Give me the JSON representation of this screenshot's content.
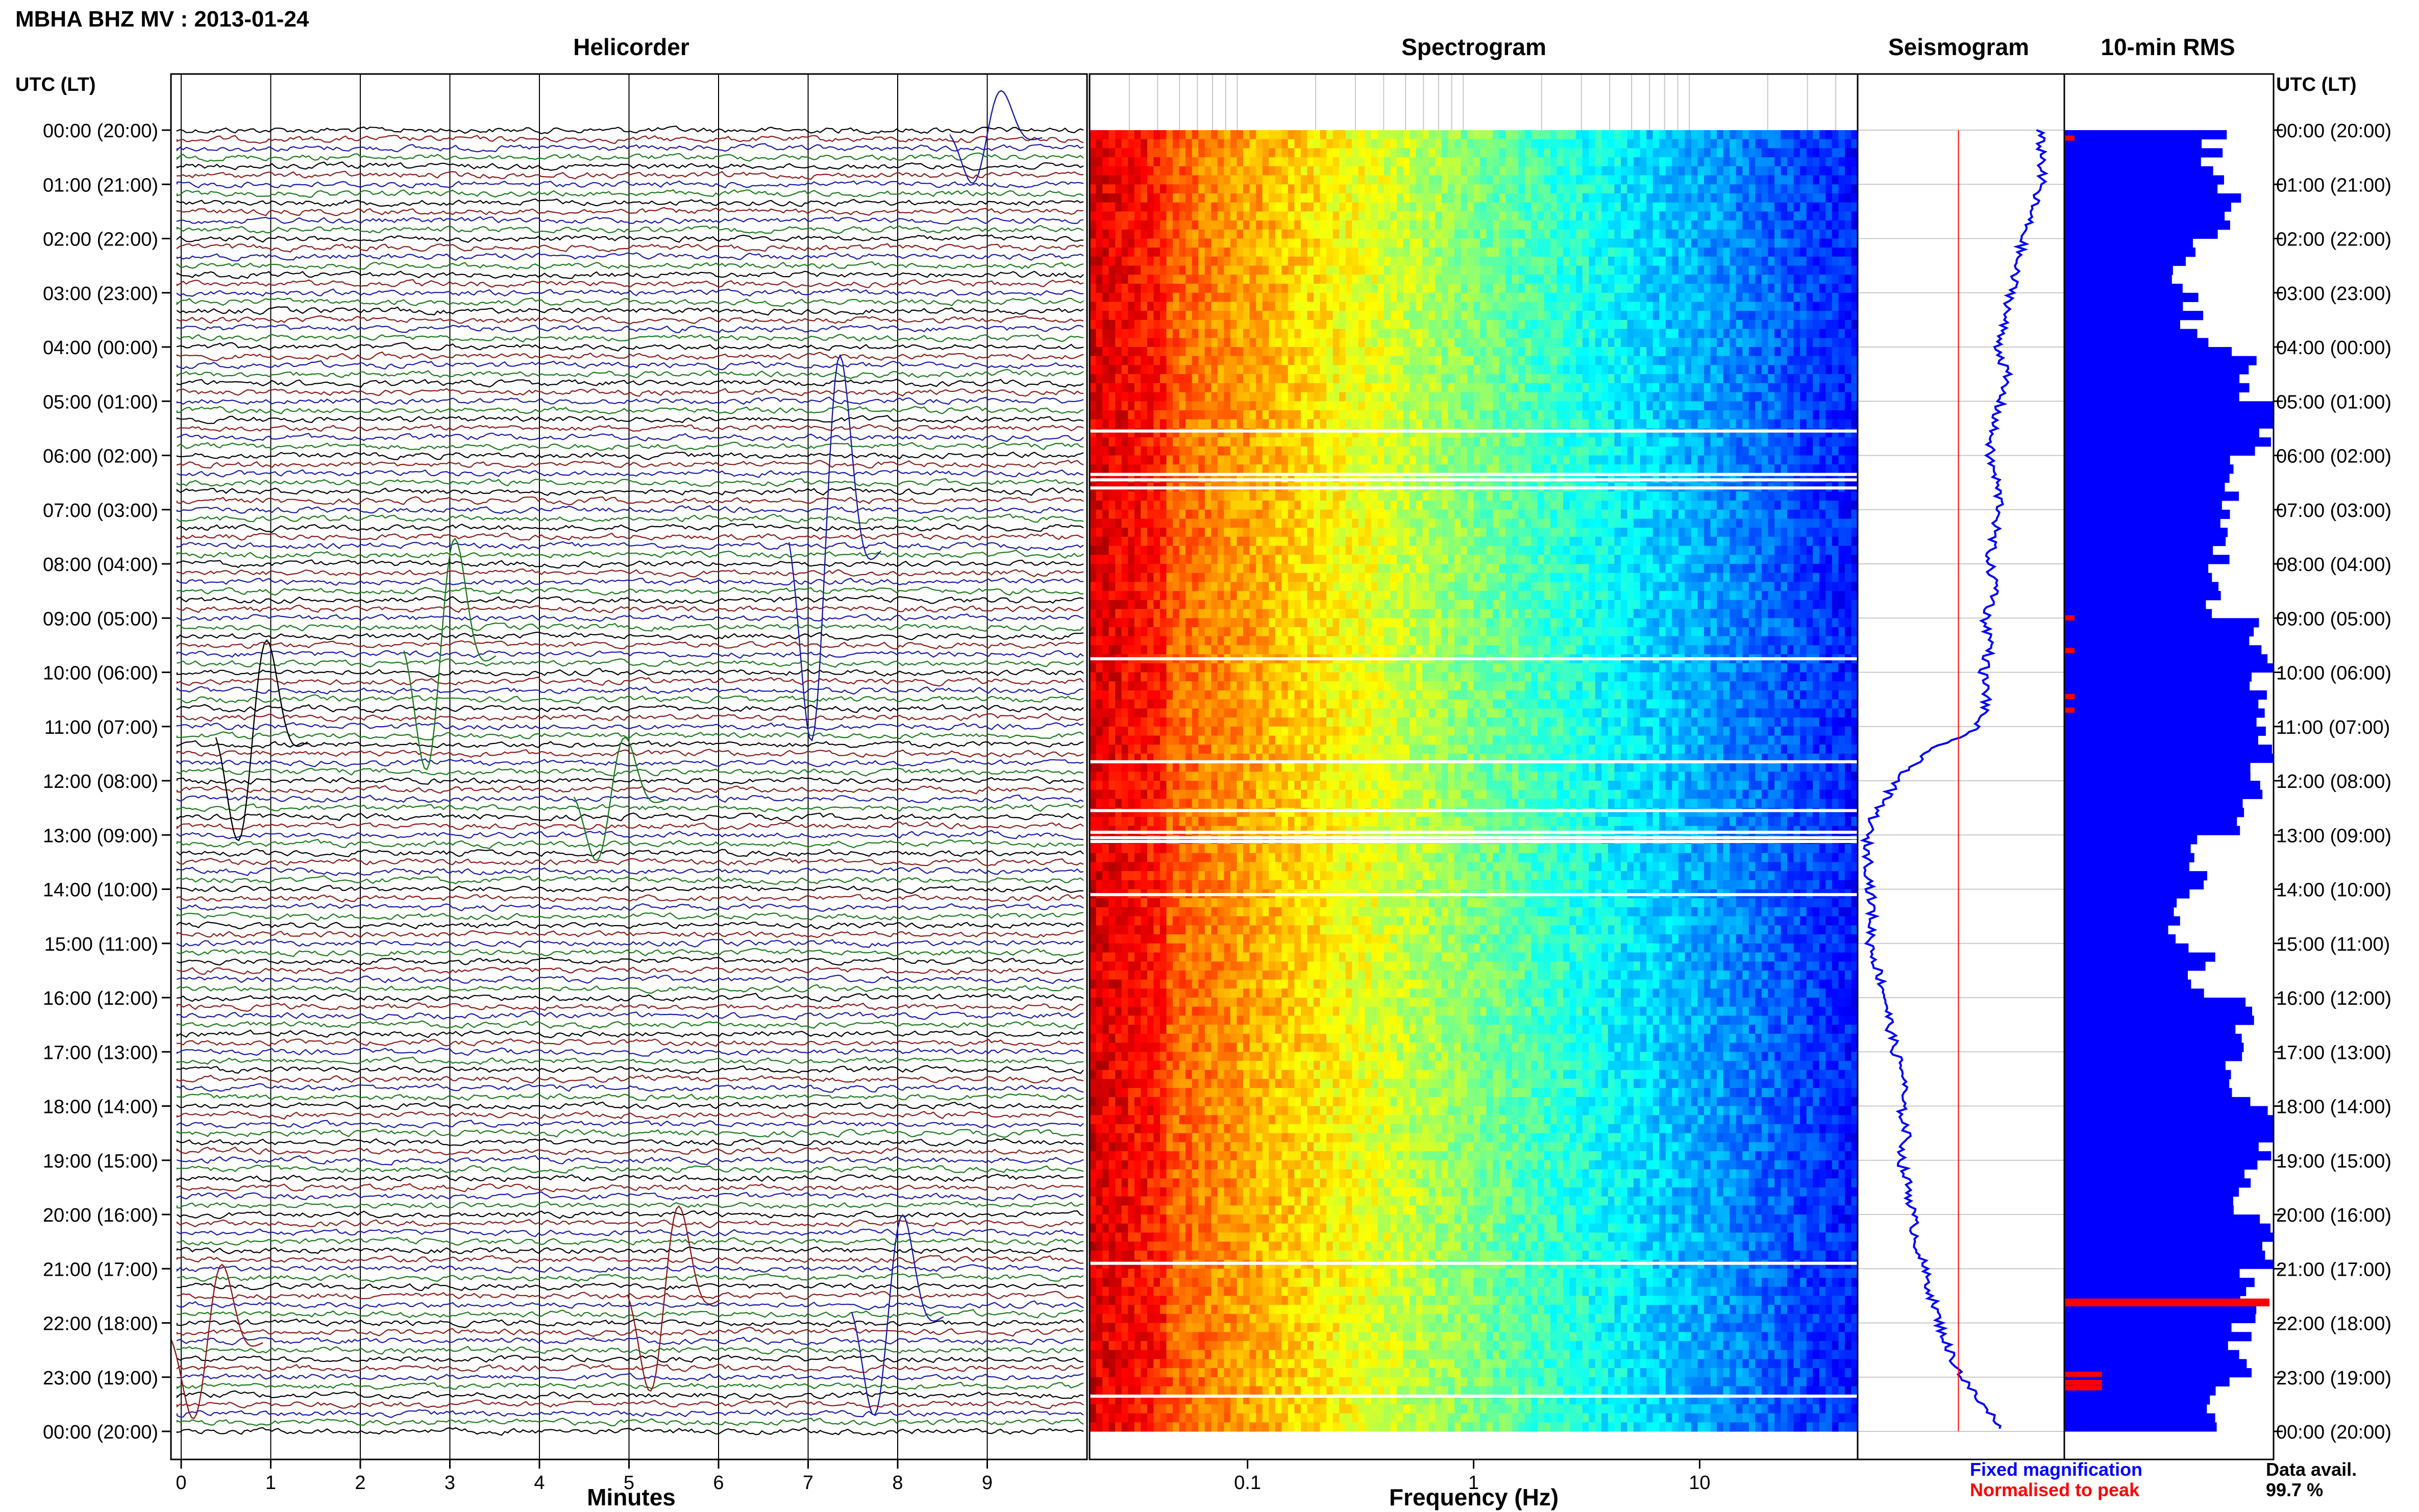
{
  "header": {
    "station": "MBHA BHZ MV : 2013-01-24",
    "utc_label": "UTC (LT)",
    "utc_label_right": "UTC (LT)"
  },
  "panels": {
    "helicorder_title": "Helicorder",
    "spectrogram_title": "Spectrogram",
    "seismogram_title": "Seismogram",
    "rms_title": "10-min RMS"
  },
  "footer": {
    "minutes_label": "Minutes",
    "frequency_label": "Frequency (Hz)",
    "fixed_mag": "Fixed magnification",
    "normalised": "Normalised to peak",
    "data_avail_label": "Data avail.",
    "data_avail_value": "99.7 %"
  },
  "colors": {
    "black": "#000000",
    "red": "#8b1a1a",
    "green": "#1a7a1a",
    "blue": "#1a1aa8",
    "fixed": "#0000ff",
    "normalised": "#ff0000",
    "rms_blue": "#0000ff"
  },
  "chart_data": [
    {
      "type": "line",
      "title": "Helicorder",
      "xlabel": "Minutes",
      "ylabel": "UTC (LT)",
      "x_ticks": [
        "0",
        "1",
        "2",
        "3",
        "4",
        "5",
        "6",
        "7",
        "8",
        "9"
      ],
      "xlim": [
        0,
        10
      ],
      "hour_labels": [
        "00:00 (20:00)",
        "01:00 (21:00)",
        "02:00 (22:00)",
        "03:00 (23:00)",
        "04:00 (00:00)",
        "05:00 (01:00)",
        "06:00 (02:00)",
        "07:00 (03:00)",
        "08:00 (04:00)",
        "09:00 (05:00)",
        "10:00 (06:00)",
        "11:00 (07:00)",
        "12:00 (08:00)",
        "13:00 (09:00)",
        "14:00 (10:00)",
        "15:00 (11:00)",
        "16:00 (12:00)",
        "17:00 (13:00)",
        "18:00 (14:00)",
        "19:00 (15:00)",
        "20:00 (16:00)",
        "21:00 (17:00)",
        "22:00 (18:00)",
        "23:00 (19:00)",
        "00:00 (20:00)"
      ],
      "lines_per_hour": 6,
      "trace_color_cycle": [
        "black",
        "red",
        "blue",
        "green"
      ],
      "grid": true
    },
    {
      "type": "heatmap",
      "title": "Spectrogram",
      "xlabel": "Frequency (Hz)",
      "x_scale": "log",
      "xlim": [
        0.02,
        50
      ],
      "x_ticks": [
        "0.1",
        "1",
        "10"
      ],
      "x_tick_values": [
        0.1,
        1,
        10
      ],
      "colormap": "jet",
      "gap_hours": [
        5.55,
        6.35,
        6.45,
        6.6,
        9.75,
        11.65,
        12.55,
        12.95,
        13.05,
        13.12,
        14.1,
        20.9,
        23.35
      ]
    },
    {
      "type": "line",
      "title": "Seismogram",
      "series": [
        {
          "name": "Fixed magnification",
          "color": "#0000ff",
          "hours": [
            0,
            0.5,
            1,
            1.5,
            2,
            2.5,
            3,
            3.5,
            4,
            4.5,
            5,
            5.5,
            6,
            6.5,
            7,
            7.5,
            8,
            8.5,
            9,
            9.5,
            10,
            10.5,
            11,
            11.5,
            12,
            12.5,
            13,
            13.5,
            14,
            14.5,
            15,
            15.5,
            16,
            16.5,
            17,
            17.5,
            18,
            18.5,
            19,
            19.5,
            20,
            20.5,
            21,
            21.5,
            22,
            22.5,
            23,
            23.5,
            24
          ],
          "values": [
            0.92,
            0.94,
            0.93,
            0.88,
            0.84,
            0.8,
            0.78,
            0.74,
            0.71,
            0.75,
            0.72,
            0.68,
            0.66,
            0.7,
            0.72,
            0.68,
            0.66,
            0.7,
            0.64,
            0.67,
            0.63,
            0.65,
            0.6,
            0.32,
            0.18,
            0.08,
            0.02,
            0.03,
            0.04,
            0.05,
            0.04,
            0.08,
            0.12,
            0.14,
            0.17,
            0.22,
            0.2,
            0.23,
            0.2,
            0.24,
            0.26,
            0.28,
            0.32,
            0.36,
            0.4,
            0.45,
            0.52,
            0.62,
            0.75
          ]
        },
        {
          "name": "Normalised to peak",
          "color": "#ff0000",
          "hours": [
            0,
            24
          ],
          "values": [
            0.5,
            0.5
          ]
        }
      ]
    },
    {
      "type": "bar",
      "title": "10-min RMS",
      "orientation": "horizontal",
      "interval_minutes": 10,
      "hourly_values": [
        0.72,
        0.8,
        0.58,
        0.62,
        0.85,
        0.98,
        0.82,
        0.76,
        0.74,
        0.95,
        0.9,
        0.94,
        0.88,
        0.62,
        0.56,
        0.66,
        0.84,
        0.82,
        0.96,
        0.86,
        0.98,
        0.88,
        0.84,
        0.74
      ],
      "red_flag_hours": [
        0.1,
        8.95,
        9.55,
        10.4,
        10.65,
        21.55,
        21.6,
        22.9,
        23.05,
        23.15
      ],
      "data_avail": "99.7 %"
    }
  ]
}
